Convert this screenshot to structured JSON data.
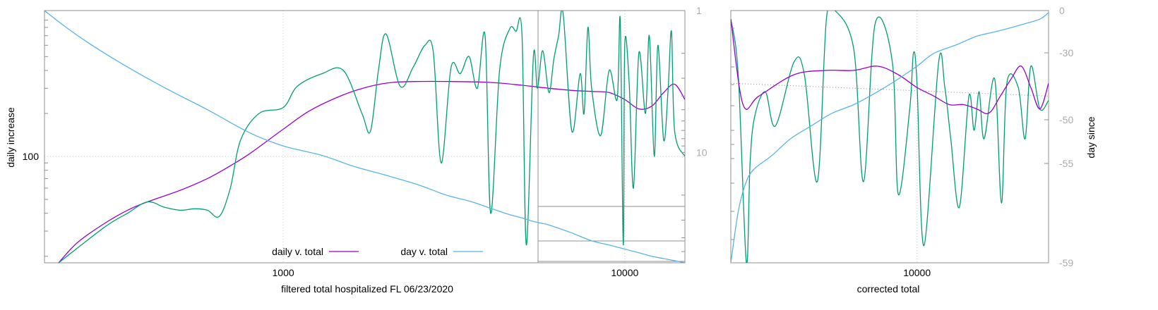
{
  "chart_data": [
    {
      "type": "line",
      "title": "",
      "xlabel": "filtered total hospitalized FL 06/23/2020",
      "ylabel": "daily increase",
      "x_scale": "log",
      "xlim": [
        200,
        15000
      ],
      "x_ticks": [
        {
          "value": 1000,
          "label": "1000"
        },
        {
          "value": 10000,
          "label": "10000"
        }
      ],
      "y_left_scale": "log",
      "ylim_left": [
        18,
        1050
      ],
      "y_left_ticks": [
        {
          "value": 100,
          "label": "100"
        }
      ],
      "y2_label": "",
      "y2_scale": "log",
      "ylim_right": [
        1,
        60
      ],
      "y_right_ticks": [
        {
          "value": 1,
          "label": "1"
        },
        {
          "value": 10,
          "label": "10"
        }
      ],
      "grid": true,
      "legend_position": "bottom-center",
      "legend": [
        {
          "label": "daily v. total",
          "color": "#9400d3"
        },
        {
          "label": "day v. total",
          "color": "#56b4e9"
        }
      ],
      "series": [
        {
          "name": "daily v. total",
          "color": "#9400d3",
          "axis": "left",
          "x": [
            220,
            250,
            300,
            350,
            400,
            500,
            600,
            700,
            800,
            1000,
            1200,
            1500,
            1800,
            2100,
            2500,
            3000,
            4000,
            5000,
            6000,
            7000,
            8000,
            9000,
            10000,
            11000,
            12000,
            13000,
            14000,
            15000
          ],
          "y": [
            18,
            25,
            34,
            42,
            48,
            58,
            70,
            86,
            105,
            155,
            210,
            270,
            310,
            330,
            335,
            335,
            330,
            315,
            300,
            290,
            285,
            280,
            250,
            215,
            225,
            280,
            320,
            250
          ]
        },
        {
          "name": "",
          "color": "#009e73",
          "axis": "left",
          "x": [
            220,
            300,
            350,
            400,
            450,
            500,
            550,
            600,
            650,
            700,
            750,
            850,
            1000,
            1100,
            1300,
            1500,
            1700,
            1800,
            1900,
            2000,
            2200,
            2400,
            2600,
            2750,
            2900,
            3100,
            3300,
            3500,
            3700,
            3900,
            4050,
            4300,
            4600,
            4800,
            5000,
            5150,
            5400,
            5550,
            5750,
            6000,
            6200,
            6400,
            6600,
            7000,
            7400,
            7600,
            7800,
            8000,
            8500,
            9000,
            9500,
            9700,
            9900,
            10000,
            10300,
            10600,
            11000,
            11500,
            11800,
            12200,
            12500,
            13000,
            13400,
            13700,
            14000,
            15000
          ],
          "y": [
            18,
            32,
            40,
            48,
            44,
            42,
            43,
            42,
            38,
            60,
            130,
            200,
            220,
            310,
            380,
            400,
            200,
            150,
            400,
            720,
            310,
            420,
            600,
            540,
            90,
            420,
            380,
            500,
            300,
            700,
            40,
            400,
            780,
            750,
            720,
            24,
            500,
            300,
            550,
            280,
            480,
            700,
            1000,
            150,
            380,
            200,
            800,
            300,
            140,
            400,
            250,
            900,
            24,
            600,
            330,
            60,
            530,
            200,
            700,
            100,
            600,
            130,
            300,
            750,
            150,
            100
          ]
        },
        {
          "name": "day v. total",
          "color": "#56b4e9",
          "axis": "right",
          "x": [
            200,
            230,
            270,
            330,
            400,
            480,
            600,
            800,
            1000,
            1300,
            1600,
            2000,
            2500,
            3000,
            3500,
            4000,
            4500,
            5000,
            5500,
            6000,
            7000,
            8000,
            9000,
            10000,
            11000,
            12000,
            13000,
            14000,
            15000
          ],
          "y": [
            1,
            1.3,
            1.7,
            2.3,
            3,
            3.8,
            5,
            7.3,
            9,
            10.5,
            12.5,
            14.5,
            17,
            20,
            22,
            24.5,
            27,
            29,
            31,
            32.5,
            37,
            42,
            45,
            48,
            51,
            54,
            56,
            58,
            60
          ]
        }
      ]
    },
    {
      "type": "line",
      "title": "",
      "xlabel": "corrected total",
      "ylabel": "",
      "y2_label": "day since",
      "x_scale": "log",
      "xlim": [
        3500,
        21000
      ],
      "x_ticks": [
        {
          "value": 10000,
          "label": "10000"
        }
      ],
      "ylim_left": [
        -59,
        0
      ],
      "y_right_ticks": [
        {
          "value": 0,
          "label": "0"
        },
        {
          "value": -30,
          "label": "-30"
        },
        {
          "value": -50,
          "label": "-50"
        },
        {
          "value": -55,
          "label": "-55"
        },
        {
          "value": -59,
          "label": "-59"
        }
      ],
      "y_right_tick_positions": [
        0,
        -10,
        -26,
        -34,
        -59
      ],
      "grid": true,
      "series": [
        {
          "name": "",
          "color": "#009e73",
          "x": [
            3500,
            3650,
            3820,
            3900,
            4000,
            4250,
            4500,
            5000,
            5300,
            5700,
            6000,
            6300,
            7000,
            7400,
            7900,
            8700,
            9000,
            9600,
            9800,
            10000,
            10400,
            11300,
            11700,
            12100,
            12700,
            13400,
            13800,
            14200,
            14600,
            15500,
            16100,
            16600,
            17700,
            18400,
            19000,
            20000,
            21000
          ],
          "y": [
            -2,
            -15,
            -59,
            -36,
            -25,
            -19,
            -27,
            -12,
            -15,
            -40,
            -2,
            0,
            -9,
            -40,
            -3,
            -12,
            -43,
            -23,
            -10,
            -17,
            -55,
            -12,
            -18,
            -30,
            -46,
            -20,
            -28,
            -19,
            -30,
            -16,
            -45,
            -17,
            -18,
            -30,
            -13,
            -23,
            -21
          ]
        },
        {
          "name": "",
          "color": "#9400d3",
          "x": [
            3500,
            3750,
            4100,
            5000,
            6000,
            7000,
            8000,
            9000,
            10000,
            11000,
            12000,
            13000,
            14000,
            15000,
            16000,
            17000,
            18000,
            19000,
            20000,
            21000
          ],
          "y": [
            -2,
            -22,
            -20,
            -15,
            -14,
            -14,
            -13,
            -15,
            -18,
            -20,
            -22,
            -22,
            -23,
            -24,
            -20,
            -16,
            -13,
            -18,
            -23,
            -17
          ]
        },
        {
          "name": "",
          "color": "#56b4e9",
          "x": [
            3500,
            3650,
            3820,
            4000,
            4400,
            4900,
            5500,
            6200,
            7000,
            8000,
            9000,
            10000,
            11000,
            12500,
            14000,
            15500,
            17000,
            18500,
            20000,
            21000
          ],
          "y": [
            -59,
            -47,
            -40,
            -37,
            -34,
            -30,
            -27,
            -24,
            -22,
            -19,
            -16,
            -13,
            -10,
            -8,
            -6,
            -5,
            -4,
            -3,
            -2,
            -0.5
          ]
        }
      ]
    }
  ]
}
